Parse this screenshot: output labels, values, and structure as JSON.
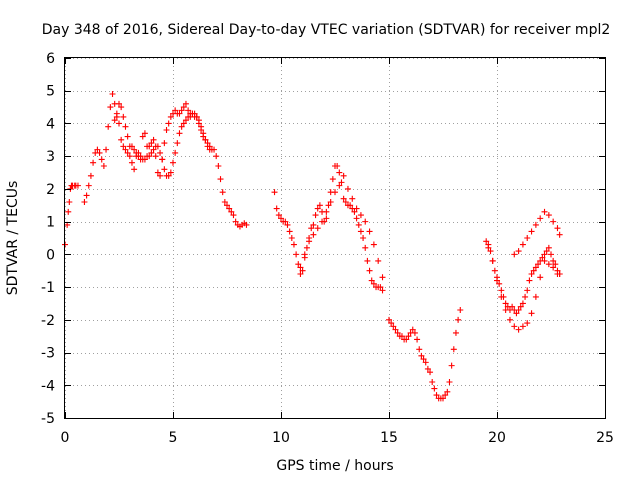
{
  "chart_data": {
    "type": "scatter",
    "title": "Day 348 of 2016, Sidereal Day-to-day VTEC variation (SDTVAR) for receiver mpl2",
    "xlabel": "GPS time / hours",
    "ylabel": "SDTVAR / TECUs",
    "xlim": [
      0,
      25
    ],
    "ylim": [
      -5,
      6
    ],
    "xticks": [
      0,
      5,
      10,
      15,
      20,
      25
    ],
    "yticks": [
      -5,
      -4,
      -3,
      -2,
      -1,
      0,
      1,
      2,
      3,
      4,
      5,
      6
    ],
    "grid": true,
    "marker": "+",
    "color": "#ff0000",
    "series": [
      {
        "x": [
          0.0,
          0.1,
          0.15,
          0.2,
          0.25,
          0.3,
          0.35,
          0.45,
          0.5,
          0.6,
          0.9,
          1.0,
          1.1,
          1.2,
          1.3,
          1.4,
          1.5,
          1.6,
          1.7,
          1.8,
          1.9,
          2.0,
          2.1,
          2.2,
          2.3,
          2.4,
          2.5,
          2.6,
          2.7,
          2.8,
          2.9,
          3.0,
          3.1,
          3.2,
          3.3,
          3.4,
          3.5,
          3.6,
          3.7,
          3.8,
          3.9,
          4.0,
          4.1,
          4.2,
          4.3,
          4.4,
          4.5,
          4.6,
          4.7,
          4.8,
          4.9,
          5.0,
          5.1,
          5.2,
          5.3,
          5.4,
          5.5,
          5.6,
          5.7,
          5.8,
          5.9,
          6.0,
          6.1,
          6.2,
          6.3,
          6.4,
          6.5,
          6.6,
          6.7,
          6.8,
          6.9,
          7.0,
          7.1,
          7.2,
          7.3,
          7.4,
          7.5,
          7.6,
          7.7,
          7.8,
          7.9,
          8.0,
          8.1,
          8.2,
          8.3,
          8.4,
          2.3,
          2.4,
          2.5,
          2.6,
          2.7,
          2.8,
          2.9,
          3.0,
          3.1,
          3.2,
          3.3,
          3.4,
          3.5,
          3.6,
          3.7,
          3.8,
          3.9,
          4.0,
          4.1,
          4.2,
          4.3,
          4.4,
          4.5,
          4.6,
          4.7,
          4.8,
          4.9,
          5.0,
          5.1,
          5.2,
          5.3,
          5.4,
          5.5,
          5.6,
          5.7,
          5.8,
          5.9,
          6.0,
          6.1,
          6.2,
          6.3,
          6.4,
          6.5,
          6.6,
          6.7,
          9.7,
          9.8,
          9.9,
          10.0,
          10.1,
          10.2,
          10.3,
          10.4,
          10.5,
          10.6,
          10.7,
          10.8,
          10.9,
          11.0,
          11.1,
          11.2,
          11.3,
          11.4,
          11.5,
          11.6,
          11.7,
          11.8,
          11.9,
          12.0,
          12.1,
          12.2,
          12.3,
          12.4,
          12.5,
          12.6,
          12.7,
          12.8,
          12.9,
          13.0,
          13.1,
          13.2,
          13.3,
          13.4,
          13.5,
          13.6,
          13.7,
          13.8,
          13.9,
          14.0,
          14.1,
          14.2,
          14.3,
          14.4,
          14.5,
          14.6,
          14.7,
          10.9,
          11.1,
          11.3,
          11.5,
          11.7,
          11.9,
          12.1,
          12.3,
          12.5,
          12.7,
          12.9,
          13.1,
          13.3,
          13.5,
          13.7,
          13.9,
          14.1,
          14.3,
          14.5,
          14.7,
          15.0,
          15.1,
          15.2,
          15.3,
          15.4,
          15.5,
          15.6,
          15.7,
          15.8,
          15.9,
          16.0,
          16.1,
          16.2,
          16.3,
          16.4,
          16.5,
          16.6,
          16.7,
          16.8,
          16.9,
          17.0,
          17.1,
          17.2,
          17.3,
          17.4,
          17.5,
          17.6,
          17.7,
          17.8,
          17.9,
          18.0,
          18.1,
          18.2,
          18.3,
          19.5,
          19.6,
          19.7,
          19.8,
          19.9,
          20.0,
          20.1,
          20.2,
          20.3,
          20.4,
          20.5,
          20.6,
          20.7,
          20.8,
          20.9,
          21.0,
          21.1,
          21.2,
          21.3,
          21.4,
          21.5,
          21.6,
          21.7,
          21.8,
          21.9,
          22.0,
          22.1,
          22.2,
          22.3,
          22.4,
          22.5,
          22.6,
          22.7,
          22.8,
          22.9,
          19.6,
          19.8,
          20.0,
          20.2,
          20.4,
          20.6,
          20.8,
          21.0,
          21.2,
          21.4,
          21.6,
          21.8,
          22.0,
          22.2,
          22.4,
          22.6,
          22.8,
          22.9,
          20.8,
          21.0,
          21.2,
          21.4,
          21.6,
          21.8,
          22.0,
          22.2,
          22.4,
          22.6,
          22.8,
          22.9
        ],
        "y": [
          0.3,
          0.9,
          1.3,
          1.6,
          2.0,
          2.1,
          2.1,
          2.1,
          2.1,
          2.1,
          1.6,
          1.8,
          2.1,
          2.4,
          2.8,
          3.1,
          3.2,
          3.1,
          2.9,
          2.7,
          3.2,
          3.9,
          4.5,
          4.9,
          4.6,
          4.2,
          4.0,
          3.5,
          3.3,
          3.2,
          3.1,
          3.0,
          2.8,
          2.6,
          3.0,
          3.1,
          2.9,
          3.6,
          3.7,
          3.3,
          3.3,
          3.4,
          3.5,
          3.0,
          2.5,
          2.4,
          2.9,
          3.4,
          3.8,
          4.0,
          4.2,
          4.3,
          4.4,
          4.3,
          4.3,
          4.4,
          4.5,
          4.6,
          4.4,
          4.3,
          4.3,
          4.2,
          4.2,
          4.0,
          3.8,
          3.6,
          3.5,
          3.4,
          3.3,
          3.2,
          3.2,
          3.0,
          2.7,
          2.3,
          1.9,
          1.6,
          1.5,
          1.4,
          1.3,
          1.2,
          1.0,
          0.9,
          0.85,
          0.9,
          0.95,
          0.9,
          4.1,
          4.3,
          4.6,
          4.5,
          4.2,
          3.9,
          3.6,
          3.3,
          3.3,
          3.2,
          3.1,
          3.0,
          3.0,
          2.9,
          2.9,
          3.0,
          3.0,
          3.1,
          3.2,
          3.3,
          3.3,
          3.1,
          2.9,
          2.6,
          2.4,
          2.4,
          2.5,
          2.8,
          3.1,
          3.4,
          3.7,
          3.9,
          4.0,
          4.1,
          4.2,
          4.2,
          4.3,
          4.3,
          4.2,
          4.1,
          3.9,
          3.7,
          3.5,
          3.3,
          3.2,
          1.9,
          1.4,
          1.2,
          1.1,
          1.0,
          1.0,
          0.9,
          0.7,
          0.5,
          0.3,
          0.0,
          -0.3,
          -0.6,
          -0.5,
          -0.1,
          0.2,
          0.5,
          0.8,
          0.9,
          1.2,
          1.4,
          1.5,
          1.3,
          1.0,
          1.1,
          1.5,
          1.9,
          2.3,
          2.7,
          2.7,
          2.5,
          2.2,
          1.7,
          1.6,
          1.5,
          1.5,
          1.4,
          1.3,
          1.1,
          0.9,
          0.7,
          0.5,
          0.2,
          -0.2,
          -0.5,
          -0.8,
          -0.9,
          -1.0,
          -1.0,
          -1.0,
          -1.1,
          -0.4,
          0.0,
          0.4,
          0.6,
          0.8,
          1.0,
          1.3,
          1.6,
          1.9,
          2.1,
          2.4,
          2.0,
          1.7,
          1.4,
          1.2,
          1.0,
          0.7,
          0.3,
          -0.2,
          -0.7,
          -2.0,
          -2.1,
          -2.2,
          -2.3,
          -2.4,
          -2.5,
          -2.5,
          -2.6,
          -2.6,
          -2.5,
          -2.4,
          -2.3,
          -2.4,
          -2.6,
          -2.9,
          -3.1,
          -3.2,
          -3.3,
          -3.5,
          -3.6,
          -3.9,
          -4.1,
          -4.3,
          -4.4,
          -4.4,
          -4.4,
          -4.3,
          -4.2,
          -3.9,
          -3.4,
          -2.9,
          -2.4,
          -2.0,
          -1.7,
          0.4,
          0.3,
          0.1,
          -0.2,
          -0.5,
          -0.7,
          -0.9,
          -1.1,
          -1.3,
          -1.5,
          -1.6,
          -1.7,
          -1.6,
          -1.7,
          -1.8,
          -1.7,
          -1.6,
          -1.5,
          -1.3,
          -1.1,
          -0.8,
          -0.6,
          -0.5,
          -0.4,
          -0.3,
          -0.2,
          -0.1,
          0.0,
          0.1,
          0.2,
          0.0,
          -0.2,
          -0.3,
          -0.5,
          -0.6,
          0.2,
          -0.2,
          -0.8,
          -1.3,
          -1.7,
          -2.0,
          -2.2,
          -2.3,
          -2.2,
          -2.1,
          -1.8,
          -1.3,
          -0.7,
          -0.2,
          -0.3,
          -0.4,
          -0.6,
          -0.6,
          0.0,
          0.1,
          0.3,
          0.5,
          0.7,
          0.9,
          1.1,
          1.3,
          1.2,
          1.0,
          0.8,
          0.6
        ]
      }
    ]
  }
}
